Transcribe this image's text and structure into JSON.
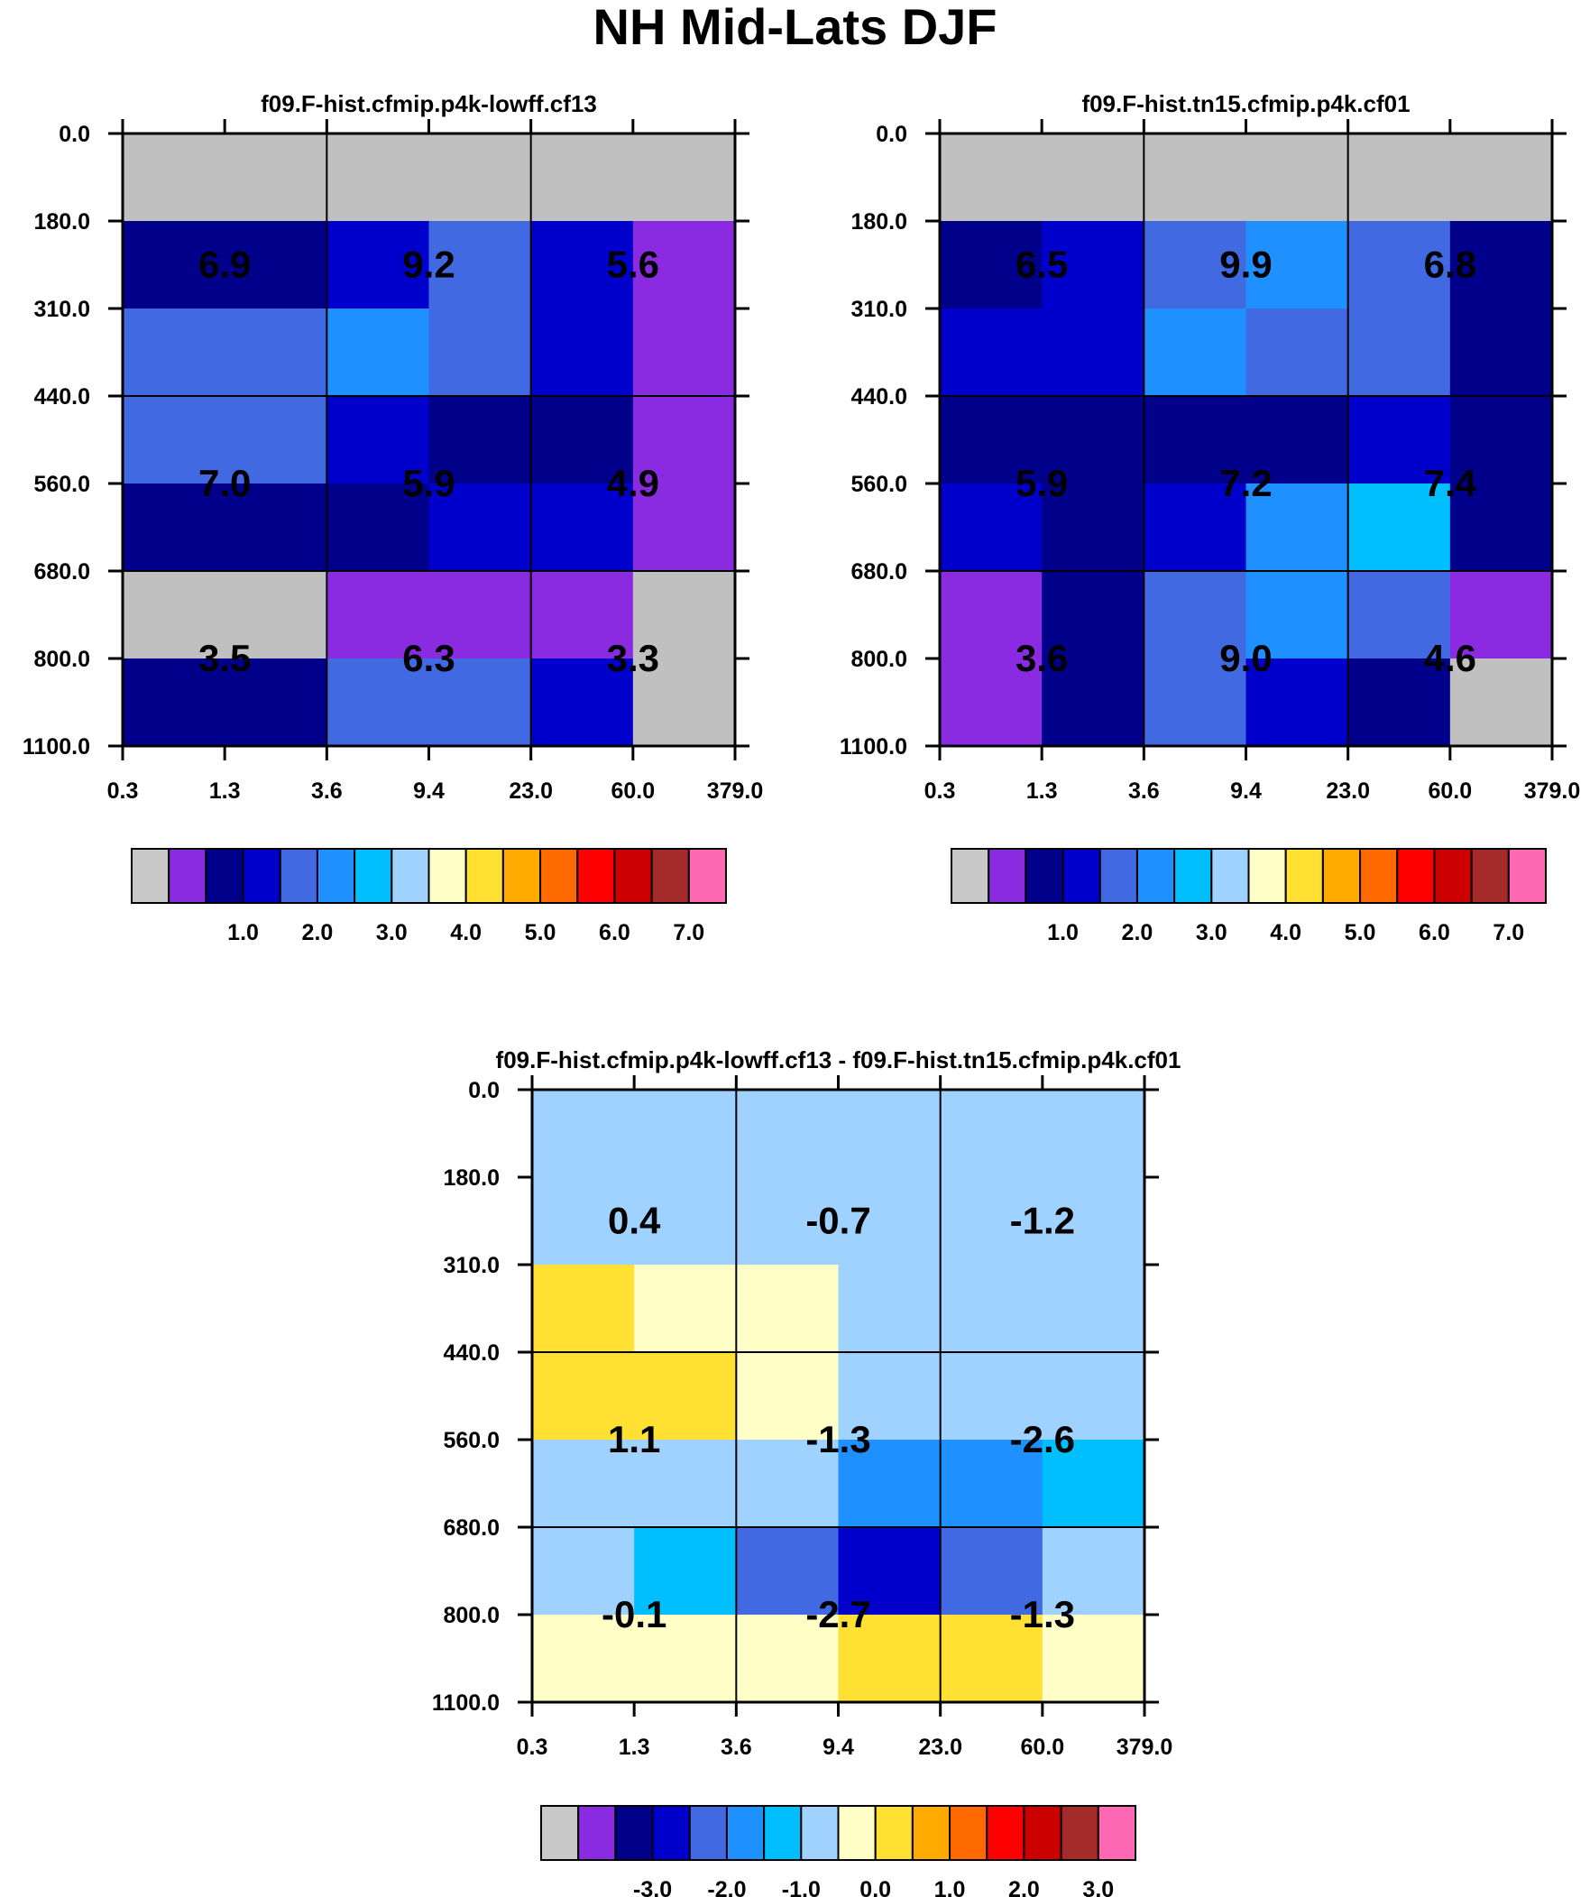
{
  "page_title": "NH Mid-Lats DJF",
  "chart_data": [
    {
      "type": "heatmap",
      "title": "f09.F-hist.cfmip.p4k-lowff.cf13",
      "x_tick_labels": [
        "0.3",
        "1.3",
        "3.6",
        "9.4",
        "23.0",
        "60.0",
        "379.0"
      ],
      "y_tick_labels": [
        "0.0",
        "180.0",
        "310.0",
        "440.0",
        "560.0",
        "680.0",
        "800.0",
        "1100.0"
      ],
      "grid": true,
      "cell_colors": [
        [
          "#c0c0c0",
          "#c0c0c0",
          "#c0c0c0",
          "#c0c0c0",
          "#c0c0c0",
          "#c0c0c0"
        ],
        [
          "#00008b",
          "#00008b",
          "#0000cd",
          "#4169e1",
          "#0000cd",
          "#8a2be2"
        ],
        [
          "#4169e1",
          "#4169e1",
          "#1e90ff",
          "#4169e1",
          "#0000cd",
          "#8a2be2"
        ],
        [
          "#4169e1",
          "#4169e1",
          "#0000cd",
          "#00008b",
          "#00008b",
          "#8a2be2"
        ],
        [
          "#00008b",
          "#00008b",
          "#00008b",
          "#0000cd",
          "#0000cd",
          "#8a2be2"
        ],
        [
          "#c0c0c0",
          "#c0c0c0",
          "#8a2be2",
          "#8a2be2",
          "#8a2be2",
          "#c0c0c0"
        ],
        [
          "#00008b",
          "#00008b",
          "#4169e1",
          "#4169e1",
          "#0000cd",
          "#c0c0c0"
        ]
      ],
      "box_values": [
        [
          "6.9",
          "9.2",
          "5.6"
        ],
        [
          "7.0",
          "5.9",
          "4.9"
        ],
        [
          "3.5",
          "6.3",
          "3.3"
        ]
      ],
      "colorbar": {
        "colors": [
          "#c8c8c8",
          "#8a2be2",
          "#00008b",
          "#0000cd",
          "#4169e1",
          "#1e90ff",
          "#00bfff",
          "#a0d2ff",
          "#ffffc8",
          "#ffe033",
          "#ffaa00",
          "#ff6a00",
          "#ff0000",
          "#cd0000",
          "#a52a2a",
          "#ff69b4"
        ],
        "labels": [
          "1.0",
          "2.0",
          "3.0",
          "4.0",
          "5.0",
          "6.0",
          "7.0"
        ]
      }
    },
    {
      "type": "heatmap",
      "title": "f09.F-hist.tn15.cfmip.p4k.cf01",
      "x_tick_labels": [
        "0.3",
        "1.3",
        "3.6",
        "9.4",
        "23.0",
        "60.0",
        "379.0"
      ],
      "y_tick_labels": [
        "0.0",
        "180.0",
        "310.0",
        "440.0",
        "560.0",
        "680.0",
        "800.0",
        "1100.0"
      ],
      "grid": true,
      "cell_colors": [
        [
          "#c0c0c0",
          "#c0c0c0",
          "#c0c0c0",
          "#c0c0c0",
          "#c0c0c0",
          "#c0c0c0"
        ],
        [
          "#00008b",
          "#0000cd",
          "#4169e1",
          "#1e90ff",
          "#4169e1",
          "#00008b"
        ],
        [
          "#0000cd",
          "#0000cd",
          "#1e90ff",
          "#4169e1",
          "#4169e1",
          "#00008b"
        ],
        [
          "#00008b",
          "#00008b",
          "#00008b",
          "#00008b",
          "#0000cd",
          "#00008b"
        ],
        [
          "#0000cd",
          "#00008b",
          "#0000cd",
          "#1e90ff",
          "#00bfff",
          "#00008b"
        ],
        [
          "#8a2be2",
          "#00008b",
          "#4169e1",
          "#1e90ff",
          "#4169e1",
          "#8a2be2"
        ],
        [
          "#8a2be2",
          "#00008b",
          "#4169e1",
          "#0000cd",
          "#00008b",
          "#c0c0c0"
        ]
      ],
      "box_values": [
        [
          "6.5",
          "9.9",
          "6.8"
        ],
        [
          "5.9",
          "7.2",
          "7.4"
        ],
        [
          "3.6",
          "9.0",
          "4.6"
        ]
      ],
      "colorbar": {
        "colors": [
          "#c8c8c8",
          "#8a2be2",
          "#00008b",
          "#0000cd",
          "#4169e1",
          "#1e90ff",
          "#00bfff",
          "#a0d2ff",
          "#ffffc8",
          "#ffe033",
          "#ffaa00",
          "#ff6a00",
          "#ff0000",
          "#cd0000",
          "#a52a2a",
          "#ff69b4"
        ],
        "labels": [
          "1.0",
          "2.0",
          "3.0",
          "4.0",
          "5.0",
          "6.0",
          "7.0"
        ]
      }
    },
    {
      "type": "heatmap",
      "title": "f09.F-hist.cfmip.p4k-lowff.cf13 - f09.F-hist.tn15.cfmip.p4k.cf01",
      "x_tick_labels": [
        "0.3",
        "1.3",
        "3.6",
        "9.4",
        "23.0",
        "60.0",
        "379.0"
      ],
      "y_tick_labels": [
        "0.0",
        "180.0",
        "310.0",
        "440.0",
        "560.0",
        "680.0",
        "800.0",
        "1100.0"
      ],
      "grid": true,
      "cell_colors": [
        [
          "#a0d2ff",
          "#a0d2ff",
          "#a0d2ff",
          "#a0d2ff",
          "#a0d2ff",
          "#a0d2ff"
        ],
        [
          "#a0d2ff",
          "#a0d2ff",
          "#a0d2ff",
          "#a0d2ff",
          "#a0d2ff",
          "#a0d2ff"
        ],
        [
          "#ffe033",
          "#ffffc8",
          "#ffffc8",
          "#a0d2ff",
          "#a0d2ff",
          "#a0d2ff"
        ],
        [
          "#ffe033",
          "#ffe033",
          "#ffffc8",
          "#a0d2ff",
          "#a0d2ff",
          "#a0d2ff"
        ],
        [
          "#a0d2ff",
          "#a0d2ff",
          "#a0d2ff",
          "#1e90ff",
          "#1e90ff",
          "#00bfff"
        ],
        [
          "#a0d2ff",
          "#00bfff",
          "#4169e1",
          "#0000cd",
          "#4169e1",
          "#a0d2ff"
        ],
        [
          "#ffffc8",
          "#ffffc8",
          "#ffffc8",
          "#ffe033",
          "#ffe033",
          "#ffffc8"
        ]
      ],
      "box_values": [
        [
          "0.4",
          "-0.7",
          "-1.2"
        ],
        [
          "1.1",
          "-1.3",
          "-2.6"
        ],
        [
          "-0.1",
          "-2.7",
          "-1.3"
        ]
      ],
      "colorbar": {
        "colors": [
          "#c8c8c8",
          "#8a2be2",
          "#00008b",
          "#0000cd",
          "#4169e1",
          "#1e90ff",
          "#00bfff",
          "#a0d2ff",
          "#ffffc8",
          "#ffe033",
          "#ffaa00",
          "#ff6a00",
          "#ff0000",
          "#cd0000",
          "#a52a2a",
          "#ff69b4"
        ],
        "labels": [
          "-3.0",
          "-2.0",
          "-1.0",
          "0.0",
          "1.0",
          "2.0",
          "3.0"
        ]
      }
    }
  ]
}
